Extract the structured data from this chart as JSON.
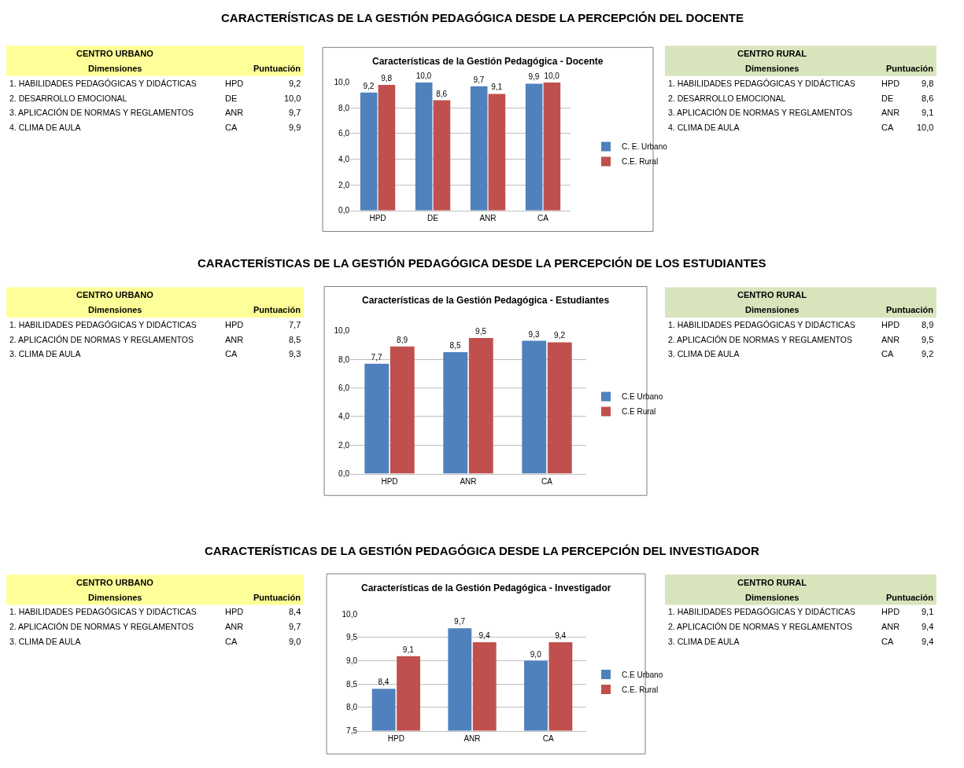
{
  "chart_data": [
    {
      "type": "other",
      "title": "CENTRO URBANO",
      "xlabel": "Dimensiones",
      "ylabel": "Puntuación",
      "categories": [
        "1. HABILIDADES PEDAGÓGICAS Y DIDÁCTICAS",
        "2. DESARROLLO EMOCIONAL",
        "3. APLICACIÓN DE NORMAS Y REGLAMENTOS",
        "4. CLIMA DE AULA"
      ],
      "y2_categories": [
        "HPD",
        "DE",
        "ANR",
        "CA"
      ],
      "value_labels": [
        "9,2",
        "10,0",
        "9,7",
        "9,9"
      ]
    },
    {
      "type": "bar",
      "title": "Características de la Gestión Pedagógica - Docente",
      "annotations": [
        "CARACTERÍSTICAS DE LA GESTIÓN PEDAGÓGICA DESDE LA PERCEPCIÓN DEL DOCENTE"
      ],
      "categories": [
        "HPD",
        "DE",
        "ANR",
        "CA"
      ],
      "series": [
        {
          "name": "C. E. Urbano",
          "color": "#4f81bd",
          "values": [
            9.2,
            10.0,
            9.7,
            9.9
          ],
          "value_labels": [
            "9,2",
            "10,0",
            "9,7",
            "9,9"
          ]
        },
        {
          "name": "C.E. Rural",
          "color": "#c0504d",
          "values": [
            9.8,
            8.6,
            9.1,
            10.0
          ],
          "value_labels": [
            "9,8",
            "8,6",
            "9,1",
            "10,0"
          ]
        }
      ],
      "ylim": [
        0,
        10
      ],
      "yticks": [
        {
          "value": 0,
          "label": "0,0"
        },
        {
          "value": 2,
          "label": "2,0"
        },
        {
          "value": 4,
          "label": "4,0"
        },
        {
          "value": 6,
          "label": "6,0"
        },
        {
          "value": 8,
          "label": "8,0"
        },
        {
          "value": 10,
          "label": "10,0"
        }
      ],
      "grid": "y",
      "legend": "right"
    },
    {
      "type": "other",
      "title": "CENTRO RURAL",
      "xlabel": "Dimensiones",
      "ylabel": "Puntuación",
      "categories": [
        "1. HABILIDADES PEDAGÓGICAS Y DIDÁCTICAS",
        "2. DESARROLLO EMOCIONAL",
        "3. APLICACIÓN DE NORMAS Y REGLAMENTOS",
        "4. CLIMA DE AULA"
      ],
      "y2_categories": [
        "HPD",
        "DE",
        "ANR",
        "CA"
      ],
      "value_labels": [
        "9,8",
        "8,6",
        "9,1",
        "10,0"
      ]
    },
    {
      "type": "other",
      "title": "CENTRO URBANO",
      "xlabel": "Dimensiones",
      "ylabel": "Puntuación",
      "categories": [
        "1. HABILIDADES PEDAGÓGICAS Y DIDÁCTICAS",
        "2. APLICACIÓN DE NORMAS Y REGLAMENTOS",
        "3. CLIMA DE AULA"
      ],
      "y2_categories": [
        "HPD",
        "ANR",
        "CA"
      ],
      "value_labels": [
        "7,7",
        "8,5",
        "9,3"
      ]
    },
    {
      "type": "bar",
      "title": "Características de la Gestión Pedagógica - Estudiantes",
      "annotations": [
        "CARACTERÍSTICAS DE LA GESTIÓN PEDAGÓGICA DESDE LA PERCEPCIÓN DE LOS ESTUDIANTES"
      ],
      "categories": [
        "HPD",
        "ANR",
        "CA"
      ],
      "series": [
        {
          "name": "C.E Urbano",
          "color": "#4f81bd",
          "values": [
            7.7,
            8.5,
            9.3
          ],
          "value_labels": [
            "7,7",
            "8,5",
            "9,3"
          ]
        },
        {
          "name": "C.E Rural",
          "color": "#c0504d",
          "values": [
            8.9,
            9.5,
            9.2
          ],
          "value_labels": [
            "8,9",
            "9,5",
            "9,2"
          ]
        }
      ],
      "ylim": [
        0,
        10
      ],
      "yticks": [
        {
          "value": 0,
          "label": "0,0"
        },
        {
          "value": 2,
          "label": "2,0"
        },
        {
          "value": 4,
          "label": "4,0"
        },
        {
          "value": 6,
          "label": "6,0"
        },
        {
          "value": 8,
          "label": "8,0"
        },
        {
          "value": 10,
          "label": "10,0"
        }
      ],
      "grid": "y",
      "legend": "right"
    },
    {
      "type": "other",
      "title": "CENTRO RURAL",
      "xlabel": "Dimensiones",
      "ylabel": "Puntuación",
      "categories": [
        "1. HABILIDADES PEDAGÓGICAS Y DIDÁCTICAS",
        "2. APLICACIÓN DE NORMAS Y REGLAMENTOS",
        "3. CLIMA DE AULA"
      ],
      "y2_categories": [
        "HPD",
        "ANR",
        "CA"
      ],
      "value_labels": [
        "8,9",
        "9,5",
        "9,2"
      ]
    },
    {
      "type": "other",
      "title": "CENTRO URBANO",
      "xlabel": "Dimensiones",
      "ylabel": "Puntuación",
      "categories": [
        "1. HABILIDADES PEDAGÓGICAS Y DIDÁCTICAS",
        "2. APLICACIÓN DE NORMAS Y REGLAMENTOS",
        "3. CLIMA DE AULA"
      ],
      "y2_categories": [
        "HPD",
        "ANR",
        "CA"
      ],
      "value_labels": [
        "8,4",
        "9,7",
        "9,0"
      ]
    },
    {
      "type": "bar",
      "title": "Características de la Gestión Pedagógica - Investigador",
      "annotations": [
        "CARACTERÍSTICAS DE LA GESTIÓN PEDAGÓGICA DESDE LA PERCEPCIÓN DEL INVESTIGADOR"
      ],
      "categories": [
        "HPD",
        "ANR",
        "CA"
      ],
      "series": [
        {
          "name": "C.E Urbano",
          "color": "#4f81bd",
          "values": [
            8.4,
            9.7,
            9.0
          ],
          "value_labels": [
            "8,4",
            "9,7",
            "9,0"
          ]
        },
        {
          "name": "C.E. Rural",
          "color": "#c0504d",
          "values": [
            9.1,
            9.4,
            9.4
          ],
          "value_labels": [
            "9,1",
            "9,4",
            "9,4"
          ]
        }
      ],
      "ylim": [
        7.5,
        10
      ],
      "yticks": [
        {
          "value": 7.5,
          "label": "7,5"
        },
        {
          "value": 8,
          "label": "8,0"
        },
        {
          "value": 8.5,
          "label": "8,5"
        },
        {
          "value": 9,
          "label": "9,0"
        },
        {
          "value": 9.5,
          "label": "9,5"
        },
        {
          "value": 10,
          "label": "10,0"
        }
      ],
      "grid": "y",
      "legend": "right"
    },
    {
      "type": "other",
      "title": "CENTRO RURAL",
      "xlabel": "Dimensiones",
      "ylabel": "Puntuación",
      "categories": [
        "1. HABILIDADES PEDAGÓGICAS Y DIDÁCTICAS",
        "2. APLICACIÓN DE NORMAS Y REGLAMENTOS",
        "3. CLIMA DE AULA"
      ],
      "y2_categories": [
        "HPD",
        "ANR",
        "CA"
      ],
      "value_labels": [
        "9,1",
        "9,4",
        "9,4"
      ]
    }
  ]
}
